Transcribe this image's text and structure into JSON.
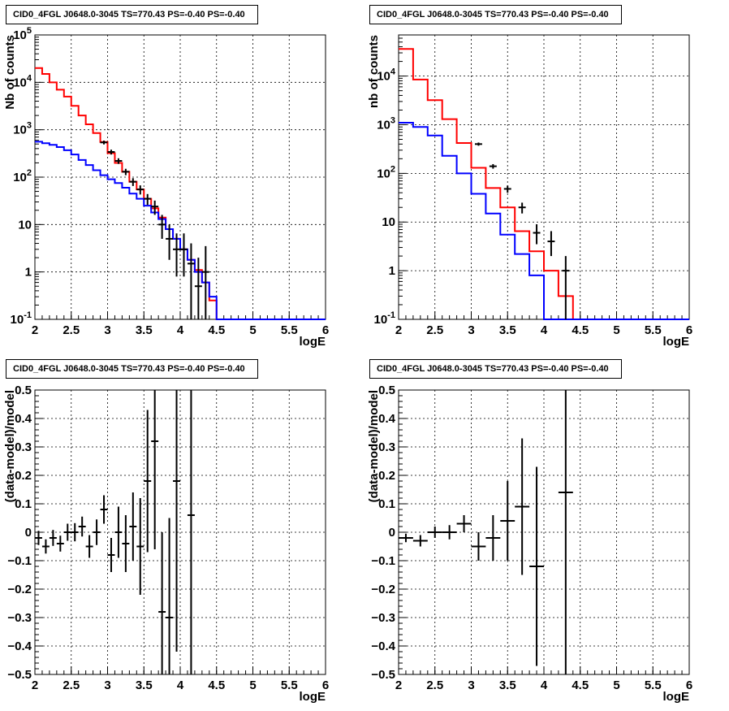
{
  "chart_data": [
    {
      "type": "line",
      "title": "CID0_4FGL J0648.0-3045 TS=770.43 PS=-0.40 PS=-0.40",
      "xlabel": "logE",
      "ylabel": "Nb of counts",
      "yscale": "log",
      "xlim": [
        2,
        6
      ],
      "ylim": [
        0.1,
        100000
      ],
      "x_ticks": [
        "2",
        "2.5",
        "3",
        "3.5",
        "4",
        "4.5",
        "5",
        "5.5",
        "6"
      ],
      "y_ticks": [
        "10^-1",
        "1",
        "10",
        "10^2",
        "10^3",
        "10^4",
        "10^5"
      ],
      "grid": true,
      "series": [
        {
          "style": "step",
          "color": "#ff0000",
          "bin_edges": [
            2.0,
            2.1,
            2.2,
            2.3,
            2.4,
            2.5,
            2.6,
            2.7,
            2.8,
            2.9,
            3.0,
            3.1,
            3.2,
            3.3,
            3.4,
            3.5,
            3.6,
            3.7,
            3.8,
            3.9,
            4.0,
            4.1,
            4.2,
            4.3,
            4.4,
            4.5,
            4.6,
            4.7,
            4.8,
            4.9,
            5.0,
            5.1,
            5.2,
            5.3,
            5.4,
            5.5,
            5.6,
            5.7,
            5.8,
            5.9,
            6.0
          ],
          "values": [
            20000,
            15000,
            10000,
            7000,
            5000,
            3200,
            2000,
            1300,
            850,
            550,
            320,
            200,
            130,
            80,
            55,
            35,
            22,
            14,
            8,
            5,
            3,
            1.8,
            1.1,
            0.6,
            0.25,
            0.1,
            0.1,
            0.1,
            0.1,
            0.1,
            0.1,
            0.1,
            0.1,
            0.1,
            0.1,
            0.1,
            0.1,
            0.1,
            0.1,
            0.1
          ]
        },
        {
          "style": "step",
          "color": "#0000ff",
          "bin_edges": [
            2.0,
            2.1,
            2.2,
            2.3,
            2.4,
            2.5,
            2.6,
            2.7,
            2.8,
            2.9,
            3.0,
            3.1,
            3.2,
            3.3,
            3.4,
            3.5,
            3.6,
            3.7,
            3.8,
            3.9,
            4.0,
            4.1,
            4.2,
            4.3,
            4.4,
            4.5,
            4.6,
            4.7,
            4.8,
            4.9,
            5.0,
            5.1,
            5.2,
            5.3,
            5.4,
            5.5,
            5.6,
            5.7,
            5.8,
            5.9,
            6.0
          ],
          "values": [
            560,
            520,
            480,
            430,
            370,
            300,
            230,
            180,
            140,
            110,
            90,
            75,
            60,
            45,
            35,
            25,
            18,
            13,
            8,
            5,
            3,
            1.8,
            1.0,
            0.6,
            0.3,
            0.1,
            0.1,
            0.1,
            0.1,
            0.1,
            0.1,
            0.1,
            0.1,
            0.1,
            0.1,
            0.1,
            0.1,
            0.1,
            0.1,
            0.1
          ]
        }
      ],
      "points": {
        "style": "errorbar",
        "color": "#000000",
        "x": [
          2.95,
          3.05,
          3.15,
          3.25,
          3.35,
          3.45,
          3.55,
          3.65,
          3.75,
          3.85,
          3.95,
          4.05,
          4.15,
          4.25,
          4.35
        ],
        "y": [
          540,
          340,
          220,
          130,
          80,
          55,
          35,
          24,
          10,
          5,
          3,
          3,
          1.5,
          0.5,
          1
        ],
        "y_lo": [
          490,
          300,
          190,
          110,
          65,
          43,
          26,
          16,
          5,
          1.8,
          0.8,
          0.8,
          0.1,
          0.1,
          0.1
        ],
        "y_hi": [
          590,
          380,
          250,
          150,
          95,
          67,
          44,
          32,
          16,
          10,
          6.5,
          6.5,
          4,
          2,
          3.5
        ]
      }
    },
    {
      "type": "line",
      "title": "CID0_4FGL J0648.0-3045 TS=770.43 PS=-0.40 PS=-0.40",
      "xlabel": "logE",
      "ylabel": "nb of counts",
      "yscale": "log",
      "xlim": [
        2,
        6
      ],
      "ylim": [
        0.1,
        70000
      ],
      "x_ticks": [
        "2",
        "2.5",
        "3",
        "3.5",
        "4",
        "4.5",
        "5",
        "5.5",
        "6"
      ],
      "y_ticks": [
        "10^-1",
        "1",
        "10",
        "10^2",
        "10^3",
        "10^4"
      ],
      "grid": true,
      "series": [
        {
          "style": "step",
          "color": "#ff0000",
          "bin_edges": [
            2.0,
            2.2,
            2.4,
            2.6,
            2.8,
            3.0,
            3.2,
            3.4,
            3.6,
            3.8,
            4.0,
            4.2,
            4.4,
            4.6,
            4.8,
            5.0,
            5.2,
            5.4,
            5.6,
            5.8,
            6.0
          ],
          "values": [
            36000,
            8500,
            3200,
            1300,
            420,
            130,
            50,
            20,
            6.5,
            2.5,
            1.0,
            0.3,
            0.1,
            0.1,
            0.1,
            0.1,
            0.1,
            0.1,
            0.1,
            0.1
          ]
        },
        {
          "style": "step",
          "color": "#0000ff",
          "bin_edges": [
            2.0,
            2.2,
            2.4,
            2.6,
            2.8,
            3.0,
            3.2,
            3.4,
            3.6,
            3.8,
            4.0,
            4.2,
            4.4,
            4.6,
            4.8,
            5.0,
            5.2,
            5.4,
            5.6,
            5.8,
            6.0
          ],
          "values": [
            1100,
            900,
            600,
            230,
            100,
            38,
            15,
            5.5,
            2.2,
            0.8,
            0.1,
            0.1,
            0.1,
            0.1,
            0.1,
            0.1,
            0.1,
            0.1,
            0.1,
            0.1
          ]
        }
      ],
      "points": {
        "style": "errorbar",
        "color": "#000000",
        "x": [
          3.1,
          3.3,
          3.5,
          3.7,
          3.9,
          4.1,
          4.3
        ],
        "y": [
          400,
          140,
          48,
          20,
          6,
          4,
          1
        ],
        "y_lo": [
          370,
          125,
          40,
          15,
          3.5,
          2,
          0.1
        ],
        "y_hi": [
          430,
          155,
          56,
          25,
          9,
          6.5,
          2
        ]
      }
    },
    {
      "type": "scatter",
      "title": "CID0_4FGL J0648.0-3045 TS=770.43 PS=-0.40 PS=-0.40",
      "xlabel": "logE",
      "ylabel": "(data-model)/model",
      "xlim": [
        2,
        6
      ],
      "ylim": [
        -0.5,
        0.5
      ],
      "x_ticks": [
        "2",
        "2.5",
        "3",
        "3.5",
        "4",
        "4.5",
        "5",
        "5.5",
        "6"
      ],
      "y_ticks": [
        "-0.5",
        "-0.4",
        "-0.3",
        "-0.2",
        "-0.1",
        "0",
        "0.1",
        "0.2",
        "0.3",
        "0.4",
        "0.5"
      ],
      "grid": true,
      "points": {
        "style": "errorbar",
        "color": "#000000",
        "x_halfwidth": 0.05,
        "x": [
          2.05,
          2.15,
          2.25,
          2.35,
          2.45,
          2.55,
          2.65,
          2.75,
          2.85,
          2.95,
          3.05,
          3.15,
          3.25,
          3.35,
          3.45,
          3.55,
          3.65,
          3.75,
          3.85,
          3.95,
          4.15
        ],
        "y": [
          -0.02,
          -0.05,
          -0.02,
          -0.04,
          0.0,
          0.0,
          0.02,
          -0.05,
          0.0,
          0.08,
          -0.08,
          0.0,
          -0.04,
          0.02,
          -0.05,
          0.18,
          0.32,
          -0.28,
          -0.3,
          0.18,
          0.06
        ],
        "y_err": [
          0.025,
          0.025,
          0.028,
          0.028,
          0.03,
          0.032,
          0.035,
          0.04,
          0.045,
          0.05,
          0.06,
          0.09,
          0.1,
          0.12,
          0.17,
          0.25,
          0.38,
          0.28,
          0.35,
          0.6,
          0.8
        ]
      }
    },
    {
      "type": "scatter",
      "title": "CID0_4FGL J0648.0-3045 TS=770.43 PS=-0.40 PS=-0.40",
      "xlabel": "logE",
      "ylabel": "(data-model)/model",
      "xlim": [
        2,
        6
      ],
      "ylim": [
        -0.5,
        0.5
      ],
      "x_ticks": [
        "2",
        "2.5",
        "3",
        "3.5",
        "4",
        "4.5",
        "5",
        "5.5",
        "6"
      ],
      "y_ticks": [
        "-0.5",
        "-0.4",
        "-0.3",
        "-0.2",
        "-0.1",
        "0",
        "0.1",
        "0.2",
        "0.3",
        "0.4",
        "0.5"
      ],
      "grid": true,
      "points": {
        "style": "errorbar",
        "color": "#000000",
        "x_halfwidth": 0.1,
        "x": [
          2.1,
          2.3,
          2.5,
          2.7,
          2.9,
          3.1,
          3.3,
          3.5,
          3.7,
          3.9,
          4.3
        ],
        "y": [
          -0.02,
          -0.03,
          0.0,
          0.0,
          0.03,
          -0.05,
          -0.02,
          0.04,
          0.09,
          -0.12,
          0.14
        ],
        "y_err": [
          0.015,
          0.02,
          0.02,
          0.025,
          0.03,
          0.05,
          0.08,
          0.14,
          0.24,
          0.35,
          0.7
        ]
      }
    }
  ]
}
